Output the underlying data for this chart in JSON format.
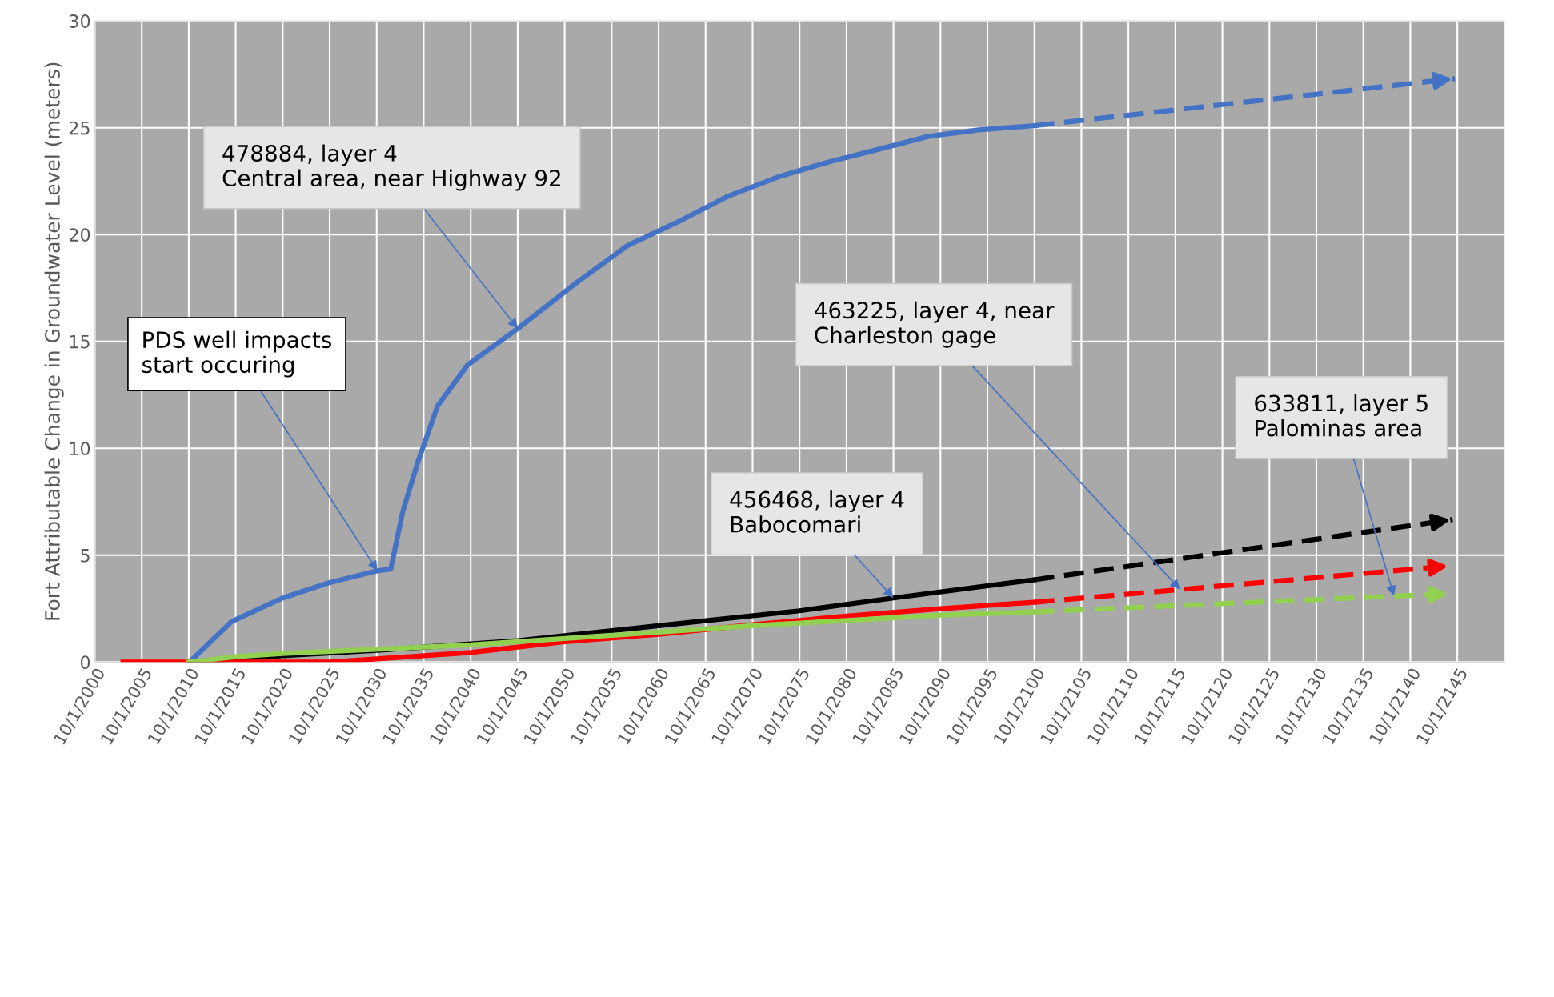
{
  "chart_data": {
    "type": "line",
    "ylabel": "Fort Attributable Change in Groundwater Level (meters)",
    "xlim": [
      "2000-10-01",
      "2150-10-01"
    ],
    "ylim": [
      0,
      30
    ],
    "yticks": [
      0,
      5,
      10,
      15,
      20,
      25,
      30
    ],
    "xticks": [
      {
        "value": "2000-10-01",
        "label": "10/1/2000"
      },
      {
        "value": "2005-10-01",
        "label": "10/1/2005"
      },
      {
        "value": "2010-10-01",
        "label": "10/1/2010"
      },
      {
        "value": "2015-10-01",
        "label": "10/1/2015"
      },
      {
        "value": "2020-10-01",
        "label": "10/1/2020"
      },
      {
        "value": "2025-10-01",
        "label": "10/1/2025"
      },
      {
        "value": "2030-10-01",
        "label": "10/1/2030"
      },
      {
        "value": "2035-10-01",
        "label": "10/1/2035"
      },
      {
        "value": "2040-10-01",
        "label": "10/1/2040"
      },
      {
        "value": "2045-10-01",
        "label": "10/1/2045"
      },
      {
        "value": "2050-10-01",
        "label": "10/1/2050"
      },
      {
        "value": "2055-10-01",
        "label": "10/1/2055"
      },
      {
        "value": "2060-10-01",
        "label": "10/1/2060"
      },
      {
        "value": "2065-10-01",
        "label": "10/1/2065"
      },
      {
        "value": "2070-10-01",
        "label": "10/1/2070"
      },
      {
        "value": "2075-10-01",
        "label": "10/1/2075"
      },
      {
        "value": "2080-10-01",
        "label": "10/1/2080"
      },
      {
        "value": "2085-10-01",
        "label": "10/1/2085"
      },
      {
        "value": "2090-10-01",
        "label": "10/1/2090"
      },
      {
        "value": "2095-10-01",
        "label": "10/1/2095"
      },
      {
        "value": "2100-10-01",
        "label": "10/1/2100"
      },
      {
        "value": "2105-10-01",
        "label": "10/1/2105"
      },
      {
        "value": "2110-10-01",
        "label": "10/1/2110"
      },
      {
        "value": "2115-10-01",
        "label": "10/1/2115"
      },
      {
        "value": "2120-10-01",
        "label": "10/1/2120"
      },
      {
        "value": "2125-10-01",
        "label": "10/1/2125"
      },
      {
        "value": "2130-10-01",
        "label": "10/1/2130"
      },
      {
        "value": "2135-10-01",
        "label": "10/1/2135"
      },
      {
        "value": "2140-10-01",
        "label": "10/1/2140"
      },
      {
        "value": "2145-10-01",
        "label": "10/1/2145"
      }
    ],
    "grid": true,
    "marker": "none",
    "series": [
      {
        "color": "#4472c4",
        "line_style": "solid",
        "x": [
          "2010-11",
          "2015-05",
          "2020-10",
          "2025-08",
          "2030-11",
          "2032-04",
          "2033-07",
          "2035-03",
          "2037-04",
          "2040-06",
          "2045-10",
          "2052-03",
          "2057-07",
          "2062-11",
          "2068-03",
          "2073-07",
          "2078-11",
          "2084-04",
          "2089-07",
          "2094-11",
          "2100-10"
        ],
        "values": [
          0,
          1.9,
          3.0,
          3.7,
          4.27,
          4.35,
          7.0,
          9.4,
          12.0,
          13.9,
          15.6,
          17.8,
          19.5,
          20.6,
          21.8,
          22.7,
          23.4,
          24.0,
          24.6,
          24.9,
          25.1
        ]
      },
      {
        "color": "#4472c4",
        "line_style": "dashed",
        "x": [
          "2100-10",
          "2145-07"
        ],
        "values": [
          25.1,
          27.3
        ]
      },
      {
        "color": "#000000",
        "line_style": "solid",
        "x": [
          "2010-10",
          "2020-10",
          "2030-10",
          "2045-10",
          "2060-10",
          "2075-10",
          "2085-10",
          "2100-10"
        ],
        "values": [
          0,
          0.3,
          0.55,
          1.0,
          1.7,
          2.4,
          3.0,
          3.85
        ]
      },
      {
        "color": "#000000",
        "line_style": "dashed",
        "x": [
          "2100-10",
          "2145-04"
        ],
        "values": [
          3.85,
          6.67
        ]
      },
      {
        "color": "#ff0000",
        "line_style": "solid",
        "x": [
          "2003-10",
          "2025-10",
          "2030-10",
          "2040-10",
          "2050-10",
          "2060-10",
          "2070-10",
          "2080-10",
          "2090-10",
          "2100-10"
        ],
        "values": [
          0,
          0,
          0.15,
          0.45,
          0.95,
          1.3,
          1.75,
          2.15,
          2.5,
          2.8
        ]
      },
      {
        "color": "#ff0000",
        "line_style": "dashed",
        "x": [
          "2100-10",
          "2145-01"
        ],
        "values": [
          2.8,
          4.5
        ]
      },
      {
        "color": "#92d050",
        "line_style": "solid",
        "x": [
          "2010-10",
          "2015-10",
          "2020-10",
          "2030-10",
          "2040-10",
          "2050-10",
          "2060-10",
          "2070-10",
          "2080-10",
          "2090-10",
          "2100-10"
        ],
        "values": [
          0,
          0.25,
          0.4,
          0.6,
          0.8,
          1.1,
          1.4,
          1.7,
          1.95,
          2.2,
          2.35
        ]
      },
      {
        "color": "#92d050",
        "line_style": "dashed",
        "x": [
          "2100-10",
          "2145-01"
        ],
        "values": [
          2.35,
          3.2
        ]
      }
    ],
    "annotations": [
      {
        "text": "478884, layer 4\nCentral area, near Highway 92",
        "x": "2045-10",
        "y": 15.6
      },
      {
        "text": "PDS well impacts\nstart occuring",
        "x": "2030-11",
        "y": 4.27
      },
      {
        "text": "463225, layer 4, near\nCharleston gage",
        "x": "2116-04",
        "y": 3.4
      },
      {
        "text": "633811, layer 5\nPalominas area",
        "x": "2139-01",
        "y": 3.1
      },
      {
        "text": "456468, layer 4\nBabocomari",
        "x": "2085-10",
        "y": 3.0
      }
    ]
  }
}
